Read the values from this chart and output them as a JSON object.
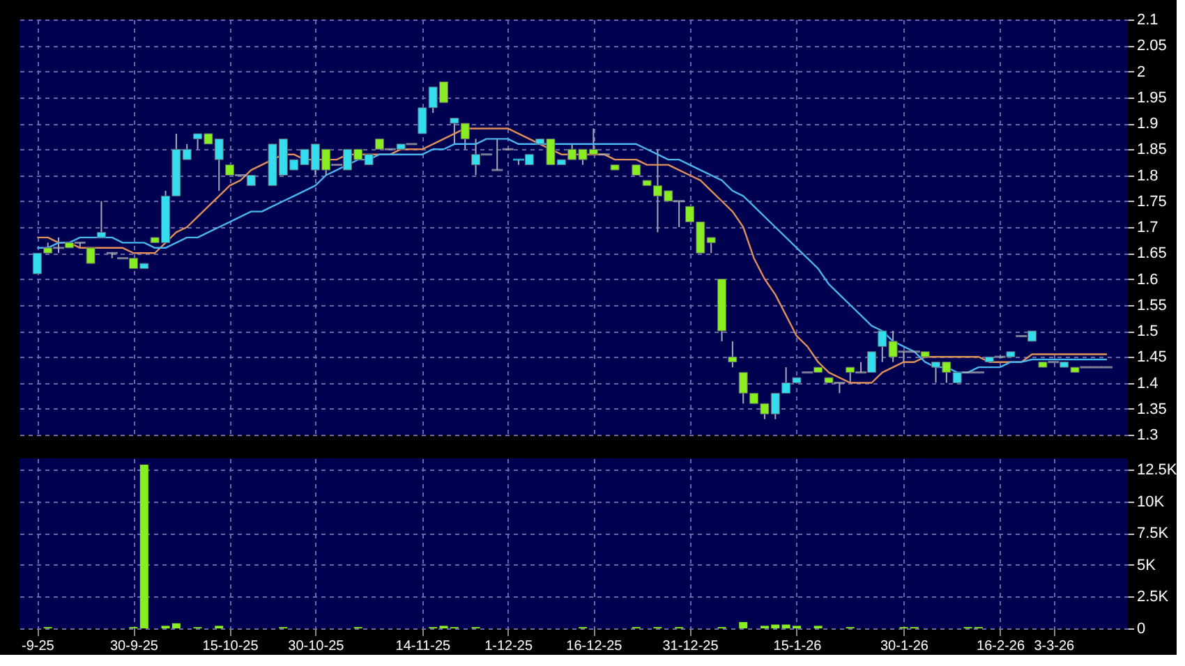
{
  "chart_data": [
    {
      "type": "candlestick",
      "ylim": [
        1.3,
        2.1
      ],
      "categories": [
        null,
        null,
        null,
        null,
        null,
        null,
        null,
        null,
        null,
        null,
        null,
        null,
        null,
        null,
        null,
        null,
        null,
        null,
        null,
        null,
        null,
        null,
        null,
        null,
        null,
        null,
        null,
        null,
        null,
        null,
        null,
        null,
        null,
        null,
        null,
        null,
        null,
        null,
        null,
        null,
        null,
        null,
        null,
        null,
        null,
        null,
        null,
        null,
        null,
        null,
        null,
        null,
        null,
        null,
        null,
        null,
        null,
        null,
        null,
        null,
        null,
        null,
        null,
        null,
        null,
        null,
        null,
        null,
        null,
        null,
        null,
        null,
        null,
        null,
        null,
        null,
        null,
        null,
        null,
        null,
        null,
        null,
        null,
        null,
        null,
        null,
        null,
        null,
        null,
        null,
        null,
        null,
        null,
        null,
        null,
        null,
        null,
        null,
        null,
        null,
        null
      ],
      "yticks": [
        1.3,
        1.35,
        1.4,
        1.45,
        1.5,
        1.55,
        1.6,
        1.65,
        1.7,
        1.75,
        1.8,
        1.85,
        1.9,
        1.95,
        2,
        2.05,
        2.1
      ],
      "tick_labels": "y",
      "grid": true,
      "ohlc": [
        [
          1.61,
          1.65,
          1.61,
          1.65
        ],
        [
          1.66,
          1.67,
          1.65,
          1.65
        ],
        [
          1.66,
          1.68,
          1.65,
          1.66
        ],
        [
          1.67,
          1.67,
          1.66,
          1.66
        ],
        [
          1.67,
          1.67,
          1.66,
          1.67
        ],
        [
          1.66,
          1.66,
          1.63,
          1.63
        ],
        [
          1.68,
          1.75,
          1.68,
          1.69
        ],
        [
          1.65,
          1.65,
          1.64,
          1.65
        ],
        [
          1.64,
          1.64,
          1.64,
          1.64
        ],
        [
          1.64,
          1.64,
          1.62,
          1.62
        ],
        [
          1.62,
          1.63,
          1.62,
          1.63
        ],
        [
          1.68,
          1.68,
          1.67,
          1.67
        ],
        [
          1.67,
          1.77,
          1.67,
          1.76
        ],
        [
          1.76,
          1.88,
          1.76,
          1.85
        ],
        [
          1.83,
          1.86,
          1.83,
          1.85
        ],
        [
          1.87,
          1.88,
          1.85,
          1.88
        ],
        [
          1.88,
          1.88,
          1.86,
          1.86
        ],
        [
          1.83,
          1.87,
          1.77,
          1.87
        ],
        [
          1.82,
          1.82,
          1.8,
          1.8
        ],
        [
          1.8,
          1.8,
          1.8,
          1.8
        ],
        [
          1.78,
          1.8,
          1.78,
          1.8
        ],
        null,
        [
          1.78,
          1.86,
          1.78,
          1.86
        ],
        [
          1.8,
          1.87,
          1.8,
          1.87
        ],
        [
          1.81,
          1.83,
          1.81,
          1.83
        ],
        [
          1.82,
          1.85,
          1.82,
          1.85
        ],
        [
          1.81,
          1.86,
          1.8,
          1.86
        ],
        [
          1.85,
          1.85,
          1.8,
          1.81
        ],
        [
          1.82,
          1.82,
          1.82,
          1.82
        ],
        [
          1.81,
          1.85,
          1.81,
          1.85
        ],
        [
          1.85,
          1.85,
          1.83,
          1.83
        ],
        [
          1.82,
          1.84,
          1.82,
          1.84
        ],
        [
          1.87,
          1.87,
          1.85,
          1.85
        ],
        [
          1.85,
          1.85,
          1.85,
          1.85
        ],
        [
          1.85,
          1.86,
          1.85,
          1.86
        ],
        [
          1.86,
          1.86,
          1.86,
          1.86
        ],
        [
          1.88,
          1.93,
          1.88,
          1.93
        ],
        [
          1.93,
          1.97,
          1.92,
          1.97
        ],
        [
          1.98,
          1.98,
          1.94,
          1.94
        ],
        [
          1.9,
          1.91,
          1.86,
          1.91
        ],
        [
          1.9,
          1.9,
          1.85,
          1.87
        ],
        [
          1.82,
          1.87,
          1.8,
          1.84
        ],
        [
          1.84,
          1.84,
          1.84,
          1.84
        ],
        [
          1.81,
          1.87,
          1.81,
          1.81
        ],
        [
          1.85,
          1.85,
          1.85,
          1.85
        ],
        [
          1.83,
          1.83,
          1.82,
          1.83
        ],
        [
          1.82,
          1.84,
          1.82,
          1.84
        ],
        [
          1.86,
          1.87,
          1.86,
          1.87
        ],
        [
          1.87,
          1.87,
          1.82,
          1.82
        ],
        [
          1.82,
          1.83,
          1.82,
          1.83
        ],
        [
          1.85,
          1.86,
          1.83,
          1.83
        ],
        [
          1.85,
          1.85,
          1.82,
          1.83
        ],
        [
          1.85,
          1.89,
          1.84,
          1.84
        ],
        [
          1.84,
          1.84,
          1.84,
          1.84
        ],
        [
          1.82,
          1.82,
          1.81,
          1.81
        ],
        null,
        [
          1.82,
          1.82,
          1.8,
          1.8
        ],
        [
          1.79,
          1.79,
          1.78,
          1.78
        ],
        [
          1.78,
          1.85,
          1.69,
          1.76
        ],
        [
          1.77,
          1.77,
          1.75,
          1.75
        ],
        [
          1.75,
          1.75,
          1.7,
          1.75
        ],
        [
          1.74,
          1.74,
          1.71,
          1.71
        ],
        [
          1.71,
          1.71,
          1.65,
          1.65
        ],
        [
          1.68,
          1.68,
          1.65,
          1.67
        ],
        [
          1.6,
          1.6,
          1.48,
          1.5
        ],
        [
          1.45,
          1.48,
          1.43,
          1.44
        ],
        [
          1.42,
          1.42,
          1.36,
          1.38
        ],
        [
          1.38,
          1.38,
          1.36,
          1.36
        ],
        [
          1.36,
          1.36,
          1.33,
          1.34
        ],
        [
          1.34,
          1.38,
          1.33,
          1.38
        ],
        [
          1.38,
          1.43,
          1.38,
          1.4
        ],
        [
          1.4,
          1.41,
          1.4,
          1.41
        ],
        [
          1.42,
          1.42,
          1.42,
          1.42
        ],
        [
          1.43,
          1.43,
          1.42,
          1.42
        ],
        [
          1.41,
          1.41,
          1.4,
          1.4
        ],
        [
          1.4,
          1.4,
          1.38,
          1.4
        ],
        [
          1.43,
          1.43,
          1.4,
          1.42
        ],
        [
          1.42,
          1.44,
          1.42,
          1.42
        ],
        [
          1.42,
          1.46,
          1.42,
          1.46
        ],
        [
          1.47,
          1.5,
          1.44,
          1.5
        ],
        [
          1.48,
          1.5,
          1.44,
          1.45
        ],
        [
          1.46,
          1.46,
          1.44,
          1.46
        ],
        [
          1.46,
          1.46,
          1.46,
          1.46
        ],
        [
          1.46,
          1.46,
          1.45,
          1.45
        ],
        [
          1.43,
          1.44,
          1.4,
          1.44
        ],
        [
          1.44,
          1.44,
          1.4,
          1.42
        ],
        [
          1.4,
          1.42,
          1.4,
          1.42
        ],
        [
          1.42,
          1.42,
          1.42,
          1.42
        ],
        [
          1.42,
          1.42,
          1.42,
          1.42
        ],
        [
          1.44,
          1.45,
          1.44,
          1.45
        ],
        [
          1.45,
          1.45,
          1.45,
          1.45
        ],
        [
          1.45,
          1.46,
          1.45,
          1.46
        ],
        [
          1.49,
          1.49,
          1.49,
          1.49
        ],
        [
          1.48,
          1.5,
          1.48,
          1.5
        ],
        [
          1.44,
          1.44,
          1.43,
          1.43
        ],
        [
          1.44,
          1.44,
          1.44,
          1.44
        ],
        [
          1.43,
          1.44,
          1.43,
          1.44
        ],
        [
          1.43,
          1.43,
          1.42,
          1.42
        ],
        [
          1.43,
          1.43,
          1.43,
          1.43
        ],
        [
          1.43,
          1.43,
          1.43,
          1.43
        ],
        [
          1.43,
          1.43,
          1.43,
          1.43
        ]
      ],
      "colors": [
        "#33ddee",
        "#88ee22",
        "#b0b0b0",
        "#88ee22",
        "#b0b0b0",
        "#88ee22",
        "#33ddee",
        "#b0b0b0",
        "#b0b0b0",
        "#88ee22",
        "#33ddee",
        "#88ee22",
        "#33ddee",
        "#33ddee",
        "#33ddee",
        "#33ddee",
        "#88ee22",
        "#33ddee",
        "#88ee22",
        "#b0b0b0",
        "#33ddee",
        null,
        "#33ddee",
        "#33ddee",
        "#33ddee",
        "#33ddee",
        "#33ddee",
        "#88ee22",
        "#b0b0b0",
        "#33ddee",
        "#88ee22",
        "#33ddee",
        "#88ee22",
        "#b0b0b0",
        "#33ddee",
        "#b0b0b0",
        "#33ddee",
        "#33ddee",
        "#88ee22",
        "#33ddee",
        "#88ee22",
        "#33ddee",
        "#b0b0b0",
        "#b0b0b0",
        "#b0b0b0",
        "#33ddee",
        "#33ddee",
        "#33ddee",
        "#88ee22",
        "#33ddee",
        "#88ee22",
        "#88ee22",
        "#88ee22",
        "#b0b0b0",
        "#88ee22",
        null,
        "#88ee22",
        "#88ee22",
        "#88ee22",
        "#88ee22",
        "#b0b0b0",
        "#88ee22",
        "#88ee22",
        "#88ee22",
        "#88ee22",
        "#88ee22",
        "#88ee22",
        "#88ee22",
        "#88ee22",
        "#33ddee",
        "#33ddee",
        "#33ddee",
        "#b0b0b0",
        "#88ee22",
        "#88ee22",
        "#b0b0b0",
        "#88ee22",
        "#b0b0b0",
        "#33ddee",
        "#33ddee",
        "#88ee22",
        "#b0b0b0",
        "#b0b0b0",
        "#88ee22",
        "#33ddee",
        "#88ee22",
        "#33ddee",
        "#b0b0b0",
        "#b0b0b0",
        "#33ddee",
        "#b0b0b0",
        "#33ddee",
        "#b0b0b0",
        "#33ddee",
        "#88ee22",
        "#b0b0b0",
        "#33ddee",
        "#88ee22",
        "#b0b0b0",
        "#b0b0b0",
        "#b0b0b0"
      ],
      "series": [
        {
          "type": "line",
          "color": "#e0905a",
          "values": [
            1.68,
            1.68,
            1.67,
            1.67,
            1.66,
            1.66,
            1.66,
            1.66,
            1.66,
            1.65,
            1.65,
            1.65,
            1.67,
            1.69,
            1.7,
            1.72,
            1.74,
            1.76,
            1.78,
            1.79,
            1.81,
            1.82,
            1.83,
            1.84,
            1.84,
            1.83,
            1.83,
            1.83,
            1.83,
            1.84,
            1.84,
            1.84,
            1.84,
            1.84,
            1.85,
            1.85,
            1.85,
            1.86,
            1.87,
            1.88,
            1.89,
            1.89,
            1.89,
            1.89,
            1.89,
            1.88,
            1.87,
            1.86,
            1.85,
            1.84,
            1.84,
            1.84,
            1.84,
            1.84,
            1.83,
            1.83,
            1.83,
            1.82,
            1.82,
            1.82,
            1.81,
            1.8,
            1.79,
            1.77,
            1.75,
            1.73,
            1.7,
            1.64,
            1.6,
            1.57,
            1.53,
            1.49,
            1.47,
            1.44,
            1.42,
            1.41,
            1.4,
            1.4,
            1.4,
            1.42,
            1.43,
            1.44,
            1.44,
            1.45,
            1.45,
            1.45,
            1.45,
            1.45,
            1.45,
            1.44,
            1.44,
            1.44,
            1.44,
            1.455,
            1.455,
            1.455,
            1.455,
            1.455,
            1.455,
            1.455,
            1.455
          ]
        },
        {
          "type": "line",
          "color": "#4ab4ec",
          "values": [
            1.66,
            1.66,
            1.67,
            1.67,
            1.68,
            1.68,
            1.68,
            1.68,
            1.67,
            1.67,
            1.67,
            1.66,
            1.66,
            1.67,
            1.68,
            1.68,
            1.69,
            1.7,
            1.71,
            1.72,
            1.73,
            1.73,
            1.74,
            1.75,
            1.76,
            1.77,
            1.78,
            1.8,
            1.81,
            1.82,
            1.83,
            1.83,
            1.84,
            1.84,
            1.84,
            1.84,
            1.84,
            1.85,
            1.85,
            1.86,
            1.86,
            1.86,
            1.87,
            1.87,
            1.87,
            1.86,
            1.86,
            1.86,
            1.86,
            1.86,
            1.86,
            1.86,
            1.86,
            1.86,
            1.86,
            1.86,
            1.86,
            1.85,
            1.84,
            1.83,
            1.83,
            1.82,
            1.81,
            1.8,
            1.79,
            1.77,
            1.76,
            1.74,
            1.72,
            1.7,
            1.68,
            1.66,
            1.64,
            1.62,
            1.59,
            1.57,
            1.55,
            1.53,
            1.51,
            1.5,
            1.48,
            1.47,
            1.46,
            1.44,
            1.43,
            1.43,
            1.42,
            1.42,
            1.43,
            1.43,
            1.43,
            1.44,
            1.44,
            1.445,
            1.445,
            1.445,
            1.445,
            1.445,
            1.445,
            1.445,
            1.445
          ]
        }
      ]
    },
    {
      "type": "bar",
      "ylim": [
        0,
        13400
      ],
      "categories": [
        "-9-25",
        null,
        null,
        null,
        null,
        null,
        null,
        null,
        null,
        "30-9-25",
        null,
        null,
        null,
        null,
        null,
        null,
        null,
        null,
        "15-10-25",
        null,
        null,
        null,
        null,
        null,
        null,
        null,
        "30-10-25",
        null,
        null,
        null,
        null,
        null,
        null,
        null,
        null,
        null,
        "14-11-25",
        null,
        null,
        null,
        null,
        null,
        null,
        null,
        "1-12-25",
        null,
        null,
        null,
        null,
        null,
        null,
        null,
        "16-12-25",
        null,
        null,
        null,
        null,
        null,
        null,
        null,
        null,
        "31-12-25",
        null,
        null,
        null,
        null,
        null,
        null,
        null,
        null,
        null,
        "15-1-26",
        null,
        null,
        null,
        null,
        null,
        null,
        null,
        null,
        null,
        "30-1-26",
        null,
        null,
        null,
        null,
        null,
        null,
        null,
        null,
        "16-2-26",
        null,
        null,
        null,
        null,
        "3-3-26",
        null,
        null,
        null,
        null,
        null
      ],
      "yticks": [
        0,
        {
          "value": 2500,
          "label": "2.5K"
        },
        {
          "value": 5000,
          "label": "5K"
        },
        {
          "value": 7500,
          "label": "7.5K"
        },
        {
          "value": 10000,
          "label": "10K"
        },
        {
          "value": 12500,
          "label": "12.5K"
        }
      ],
      "grid": true,
      "color": "#88ee22",
      "values": [
        null,
        100,
        null,
        null,
        null,
        null,
        null,
        null,
        null,
        100,
        12900,
        null,
        200,
        400,
        null,
        100,
        null,
        200,
        null,
        null,
        null,
        null,
        null,
        100,
        null,
        null,
        null,
        null,
        null,
        null,
        100,
        null,
        null,
        null,
        null,
        null,
        null,
        100,
        200,
        100,
        null,
        100,
        null,
        null,
        null,
        null,
        null,
        null,
        null,
        null,
        null,
        100,
        null,
        null,
        null,
        null,
        100,
        null,
        100,
        null,
        100,
        null,
        null,
        null,
        100,
        null,
        500,
        null,
        200,
        300,
        300,
        200,
        null,
        200,
        null,
        null,
        100,
        null,
        null,
        null,
        null,
        100,
        100,
        null,
        null,
        null,
        null,
        100,
        100,
        null,
        null,
        null,
        null,
        null,
        null,
        null,
        null,
        null,
        null,
        null,
        null
      ]
    }
  ]
}
